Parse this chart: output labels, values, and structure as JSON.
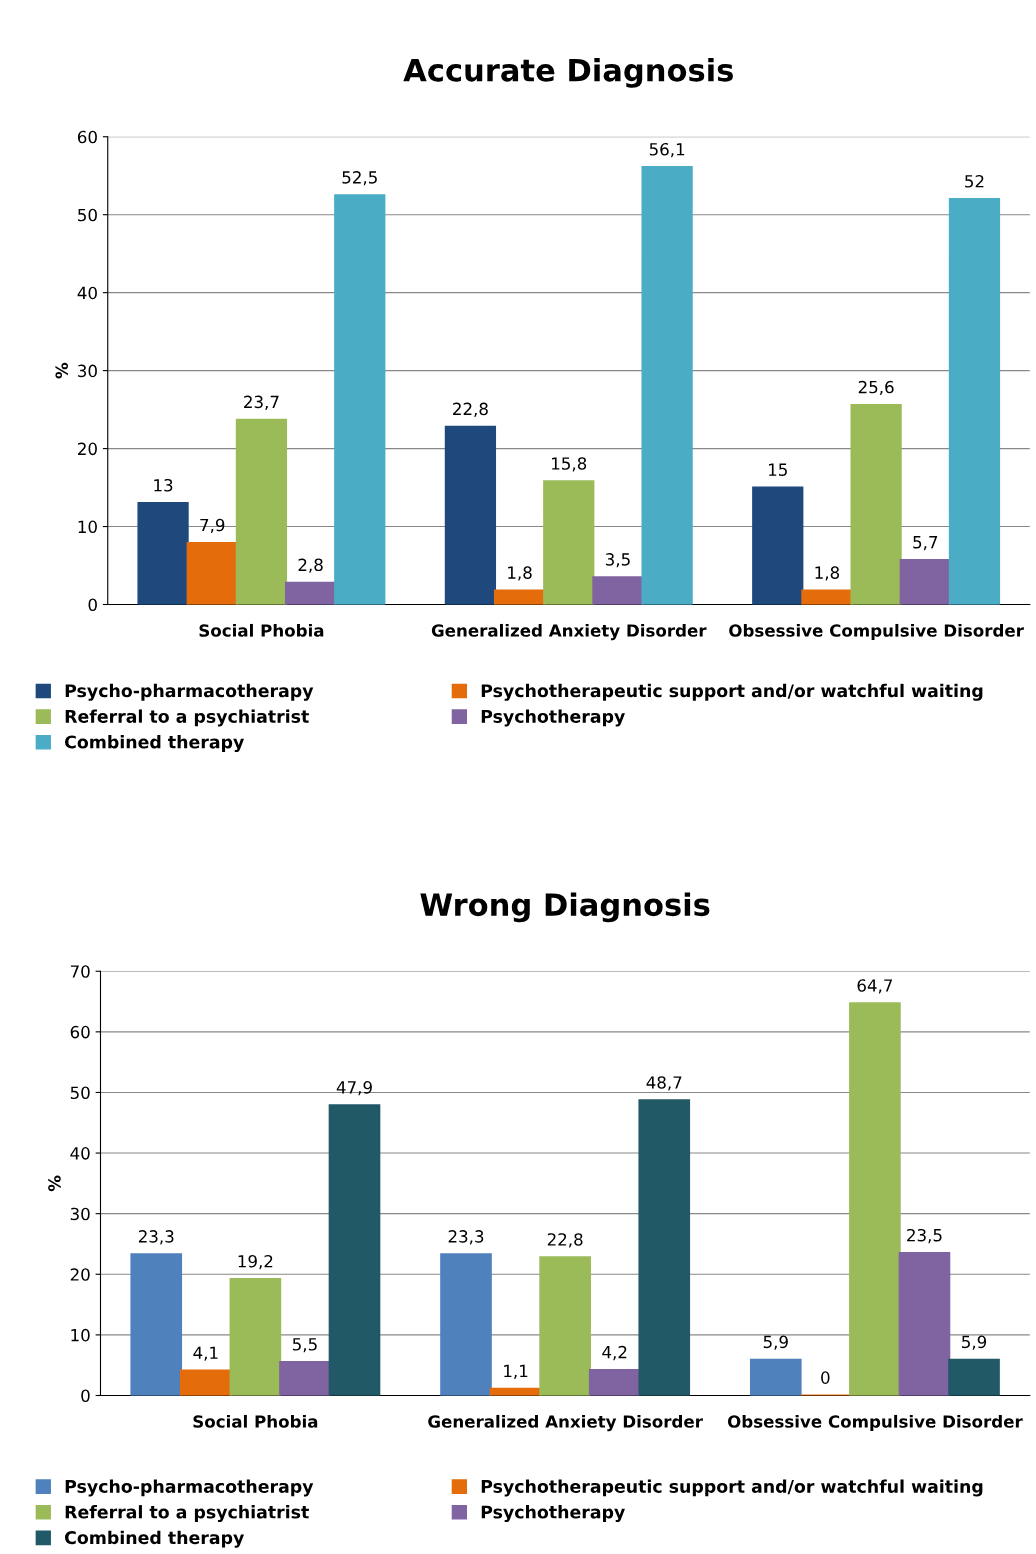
{
  "chart_data": [
    {
      "type": "bar",
      "title": "Accurate Diagnosis",
      "ylabel": "%",
      "categories": [
        "Social Phobia",
        "Generalized Anxiety Disorder",
        "Obsessive Compulsive Disorder"
      ],
      "ylim": [
        0,
        60
      ],
      "yticks": [
        0,
        10,
        20,
        30,
        40,
        50,
        60
      ],
      "grid": "y",
      "legend": "bottom",
      "series": [
        {
          "name": "Psycho-pharmacotherapy",
          "color": "#1f497d",
          "values": [
            13,
            22.8,
            15
          ],
          "value_labels": [
            "13",
            "22,8",
            "15"
          ]
        },
        {
          "name": "Psychotherapeutic support and/or watchful waiting",
          "color": "#e46c0a",
          "values": [
            7.9,
            1.8,
            1.8
          ],
          "value_labels": [
            "7,9",
            "1,8",
            "1,8"
          ]
        },
        {
          "name": "Referral to a psychiatrist",
          "color": "#9bbb59",
          "values": [
            23.7,
            15.8,
            25.6
          ],
          "value_labels": [
            "23,7",
            "15,8",
            "25,6"
          ]
        },
        {
          "name": "Psychotherapy",
          "color": "#8064a2",
          "values": [
            2.8,
            3.5,
            5.7
          ],
          "value_labels": [
            "2,8",
            "3,5",
            "5,7"
          ]
        },
        {
          "name": "Combined therapy",
          "color": "#4bacc6",
          "values": [
            52.5,
            56.1,
            52
          ],
          "value_labels": [
            "52,5",
            "56,1",
            "52"
          ]
        }
      ]
    },
    {
      "type": "bar",
      "title": "Wrong Diagnosis",
      "ylabel": "%",
      "categories": [
        "Social Phobia",
        "Generalized Anxiety Disorder",
        "Obsessive Compulsive Disorder"
      ],
      "ylim": [
        0,
        70
      ],
      "yticks": [
        0,
        10,
        20,
        30,
        40,
        50,
        60,
        70
      ],
      "grid": "y",
      "legend": "bottom",
      "series": [
        {
          "name": "Psycho-pharmacotherapy",
          "color": "#4f81bd",
          "values": [
            23.3,
            23.3,
            5.9
          ],
          "value_labels": [
            "23,3",
            "23,3",
            "5,9"
          ]
        },
        {
          "name": "Psychotherapeutic support and/or watchful waiting",
          "color": "#e46c0a",
          "values": [
            4.1,
            1.1,
            0
          ],
          "value_labels": [
            "4,1",
            "1,1",
            "0"
          ]
        },
        {
          "name": "Referral to a psychiatrist",
          "color": "#9bbb59",
          "values": [
            19.2,
            22.8,
            64.7
          ],
          "value_labels": [
            "19,2",
            "22,8",
            "64,7"
          ]
        },
        {
          "name": "Psychotherapy",
          "color": "#8064a2",
          "values": [
            5.5,
            4.2,
            23.5
          ],
          "value_labels": [
            "5,5",
            "4,2",
            "23,5"
          ]
        },
        {
          "name": "Combined therapy",
          "color": "#215967",
          "values": [
            47.9,
            48.7,
            5.9
          ],
          "value_labels": [
            "47,9",
            "48,7",
            "5,9"
          ]
        }
      ]
    }
  ]
}
